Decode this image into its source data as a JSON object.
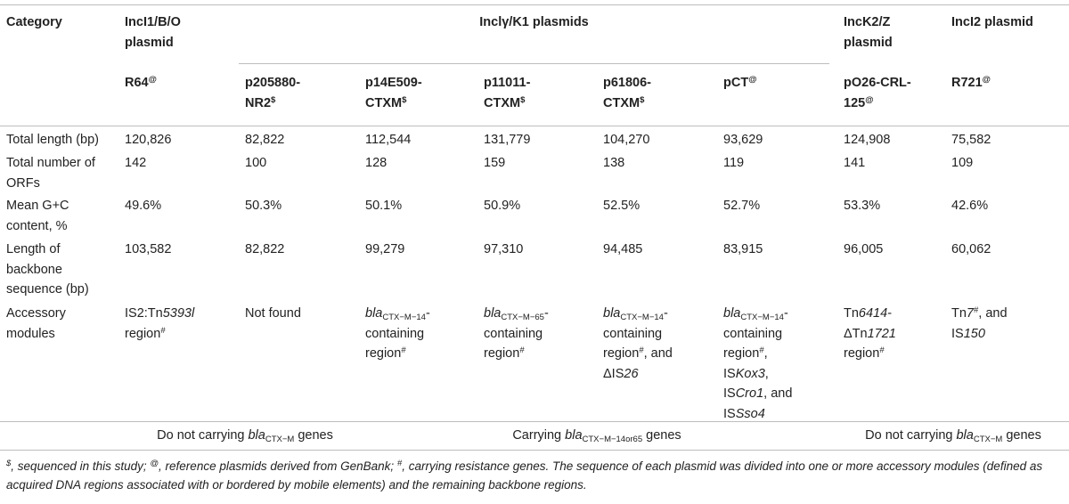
{
  "header": {
    "category": "Category",
    "incI1_group": [
      "IncI1/B/O",
      "plasmid"
    ],
    "inciy_group": "Inclγ/K1 plasmids",
    "inck2_group": [
      "IncK2/Z",
      "plasmid"
    ],
    "inci2_group": "IncI2 plasmid",
    "col_r64": {
      "name": "R64",
      "sup": "@"
    },
    "col_p205880": {
      "lines": [
        "p205880-",
        "NR2"
      ],
      "sup": "$"
    },
    "col_p14e509": {
      "lines": [
        "p14E509-",
        "CTXM"
      ],
      "sup": "$"
    },
    "col_p11011": {
      "lines": [
        "p11011-",
        "CTXM"
      ],
      "sup": "$"
    },
    "col_p61806": {
      "lines": [
        "p61806-",
        "CTXM"
      ],
      "sup": "$"
    },
    "col_pct": {
      "name": "pCT",
      "sup": "@"
    },
    "col_po26": {
      "lines": [
        "pO26-CRL-",
        "125"
      ],
      "sup": "@"
    },
    "col_r721": {
      "name": "R721",
      "sup": "@"
    }
  },
  "rows": {
    "total_length": {
      "label": "Total length (bp)",
      "values": [
        "120,826",
        "82,822",
        "112,544",
        "131,779",
        "104,270",
        "93,629",
        "124,908",
        "75,582"
      ]
    },
    "orfs": {
      "label_lines": [
        "Total number of",
        "ORFs"
      ],
      "values": [
        "142",
        "100",
        "128",
        "159",
        "138",
        "119",
        "141",
        "109"
      ]
    },
    "gc": {
      "label_lines": [
        "Mean G+C",
        "content, %"
      ],
      "values": [
        "49.6%",
        "50.3%",
        "50.1%",
        "50.9%",
        "52.5%",
        "52.7%",
        "53.3%",
        "42.6%"
      ]
    },
    "backbone": {
      "label_lines": [
        "Length of",
        "backbone",
        "sequence (bp)"
      ],
      "values": [
        "103,582",
        "82,822",
        "99,279",
        "97,310",
        "94,485",
        "83,915",
        "96,005",
        "60,062"
      ]
    },
    "accessory": {
      "label_lines": [
        "Accessory",
        "modules"
      ],
      "r64": {
        "line1_pre": "IS2:Tn",
        "line1_ital": "5393l",
        "line2": "region",
        "sup": "#"
      },
      "p205880": "Not found",
      "cell_bla": "bla",
      "cell_containing": "containing",
      "cell_region": "region",
      "sub_m14": "CTX−M−14",
      "sub_m65": "CTX−M−65",
      "hash": "#",
      "p61806_and": ", and",
      "p61806_delta": "ΔIS",
      "p61806_num": "26",
      "pct_is": "IS",
      "pct_kox": "Kox3",
      "pct_cro": "Cro1",
      "pct_and": ", and",
      "pct_sso": "Sso4",
      "po26_tn": "Tn",
      "po26_6414": "6414",
      "po26_dash": "-",
      "po26_delta": "ΔTn",
      "po26_1721": "1721",
      "r721_tn": "Tn",
      "r721_7": "7",
      "r721_and": ", and",
      "r721_is": "IS",
      "r721_150": "150"
    }
  },
  "summary": {
    "left": {
      "pre": "Do not carrying ",
      "bla": "bla",
      "sub": "CTX−M",
      "post": " genes"
    },
    "middle": {
      "pre": "Carrying ",
      "bla": "bla",
      "sub": "CTX−M−14or65",
      "post": " genes"
    },
    "right": {
      "pre": "Do not carrying ",
      "bla": "bla",
      "sub": "CTX−M",
      "post": " genes"
    }
  },
  "footnote": {
    "sym1": "$",
    "text1": ", sequenced in this study; ",
    "sym2": "@",
    "text2": ", reference plasmids derived from GenBank; ",
    "sym3": "#",
    "text3": ", carrying resistance genes. The sequence of each plasmid was divided into one or more accessory modules (defined as acquired DNA regions associated with or bordered by mobile elements) and the remaining backbone regions."
  }
}
